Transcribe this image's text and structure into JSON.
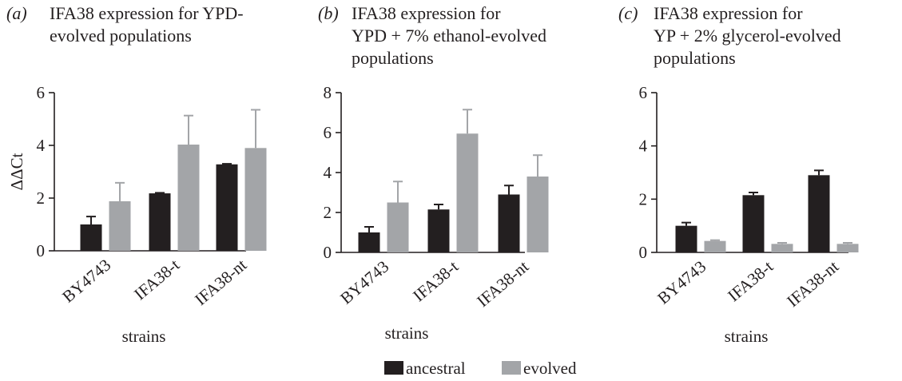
{
  "panels": [
    {
      "letter": "(a)",
      "title_lines": [
        "IFA38 expression for YPD-",
        "evolved populations"
      ]
    },
    {
      "letter": "(b)",
      "title_lines": [
        "IFA38 expression for",
        "YPD + 7% ethanol-evolved",
        "populations"
      ]
    },
    {
      "letter": "(c)",
      "title_lines": [
        "IFA38 expression for",
        "YP + 2% glycerol-evolved",
        "populations"
      ]
    }
  ],
  "legend": [
    {
      "label": "ancestral",
      "color": "#231f20"
    },
    {
      "label": "evolved",
      "color": "#a3a5a8"
    }
  ],
  "chart_data": [
    {
      "type": "bar",
      "title": "IFA38 expression for YPD-evolved populations",
      "xlabel": "strains",
      "ylabel": "ΔΔCt",
      "ylim": [
        0,
        6
      ],
      "yticks": [
        0,
        2,
        4,
        6
      ],
      "categories": [
        "BY4743",
        "IFA38-t",
        "IFA38-nt"
      ],
      "series": [
        {
          "name": "ancestral",
          "values": [
            1.0,
            2.18,
            3.28
          ],
          "errors": [
            0.3,
            0.02,
            0.02
          ]
        },
        {
          "name": "evolved",
          "values": [
            1.88,
            4.03,
            3.9
          ],
          "errors": [
            0.7,
            1.1,
            1.45
          ]
        }
      ]
    },
    {
      "type": "bar",
      "title": "IFA38 expression for YPD + 7% ethanol-evolved populations",
      "xlabel": "strains",
      "ylabel": "",
      "ylim": [
        0,
        8
      ],
      "yticks": [
        0,
        2,
        4,
        6,
        8
      ],
      "categories": [
        "BY4743",
        "IFA38-t",
        "IFA38-nt"
      ],
      "series": [
        {
          "name": "ancestral",
          "values": [
            1.0,
            2.15,
            2.9
          ],
          "errors": [
            0.28,
            0.25,
            0.45
          ]
        },
        {
          "name": "evolved",
          "values": [
            2.5,
            5.95,
            3.8
          ],
          "errors": [
            1.05,
            1.2,
            1.07
          ]
        }
      ]
    },
    {
      "type": "bar",
      "title": "IFA38 expression for YP + 2% glycerol-evolved populations",
      "xlabel": "strains",
      "ylabel": "",
      "ylim": [
        0,
        6
      ],
      "yticks": [
        0,
        2,
        4,
        6
      ],
      "categories": [
        "BY4743",
        "IFA38-t",
        "IFA38-nt"
      ],
      "series": [
        {
          "name": "ancestral",
          "values": [
            1.0,
            2.15,
            2.9
          ],
          "errors": [
            0.12,
            0.1,
            0.18
          ]
        },
        {
          "name": "evolved",
          "values": [
            0.43,
            0.32,
            0.32
          ],
          "errors": [
            0.03,
            0.04,
            0.04
          ]
        }
      ]
    }
  ]
}
